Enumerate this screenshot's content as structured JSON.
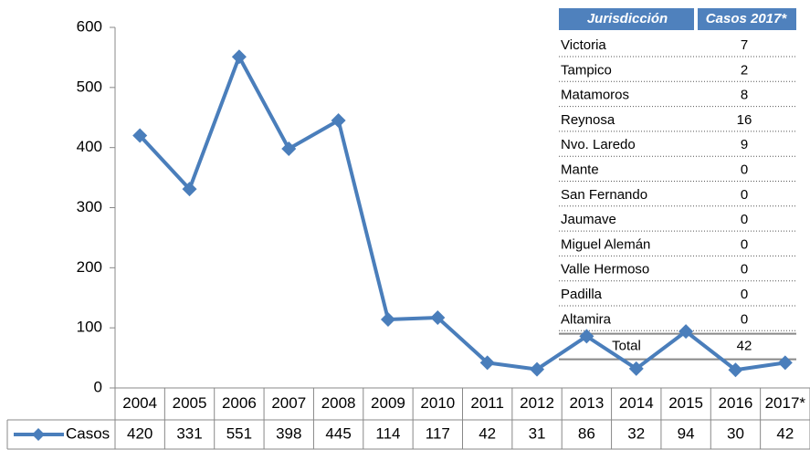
{
  "chart_data": {
    "type": "line",
    "categories": [
      "2004",
      "2005",
      "2006",
      "2007",
      "2008",
      "2009",
      "2010",
      "2011",
      "2012",
      "2013",
      "2014",
      "2015",
      "2016",
      "2017*"
    ],
    "series": [
      {
        "name": "Casos",
        "color": "#4a7ebb",
        "values": [
          420,
          331,
          551,
          398,
          445,
          114,
          117,
          42,
          31,
          86,
          32,
          94,
          30,
          42
        ]
      }
    ],
    "ylim": [
      0,
      600
    ],
    "yticks": [
      0,
      100,
      200,
      300,
      400,
      500,
      600
    ],
    "grid": false
  },
  "jurisdiction_table": {
    "header": [
      "Jurisdicción",
      "Casos 2017*"
    ],
    "rows": [
      [
        "Victoria",
        7
      ],
      [
        "Tampico",
        2
      ],
      [
        "Matamoros",
        8
      ],
      [
        "Reynosa",
        16
      ],
      [
        "Nvo. Laredo",
        9
      ],
      [
        "Mante",
        0
      ],
      [
        "San Fernando",
        0
      ],
      [
        "Jaumave",
        0
      ],
      [
        "Miguel Alemán",
        0
      ],
      [
        "Valle Hermoso",
        0
      ],
      [
        "Padilla",
        0
      ],
      [
        "Altamira",
        0
      ]
    ],
    "total": [
      "Total",
      42
    ]
  }
}
